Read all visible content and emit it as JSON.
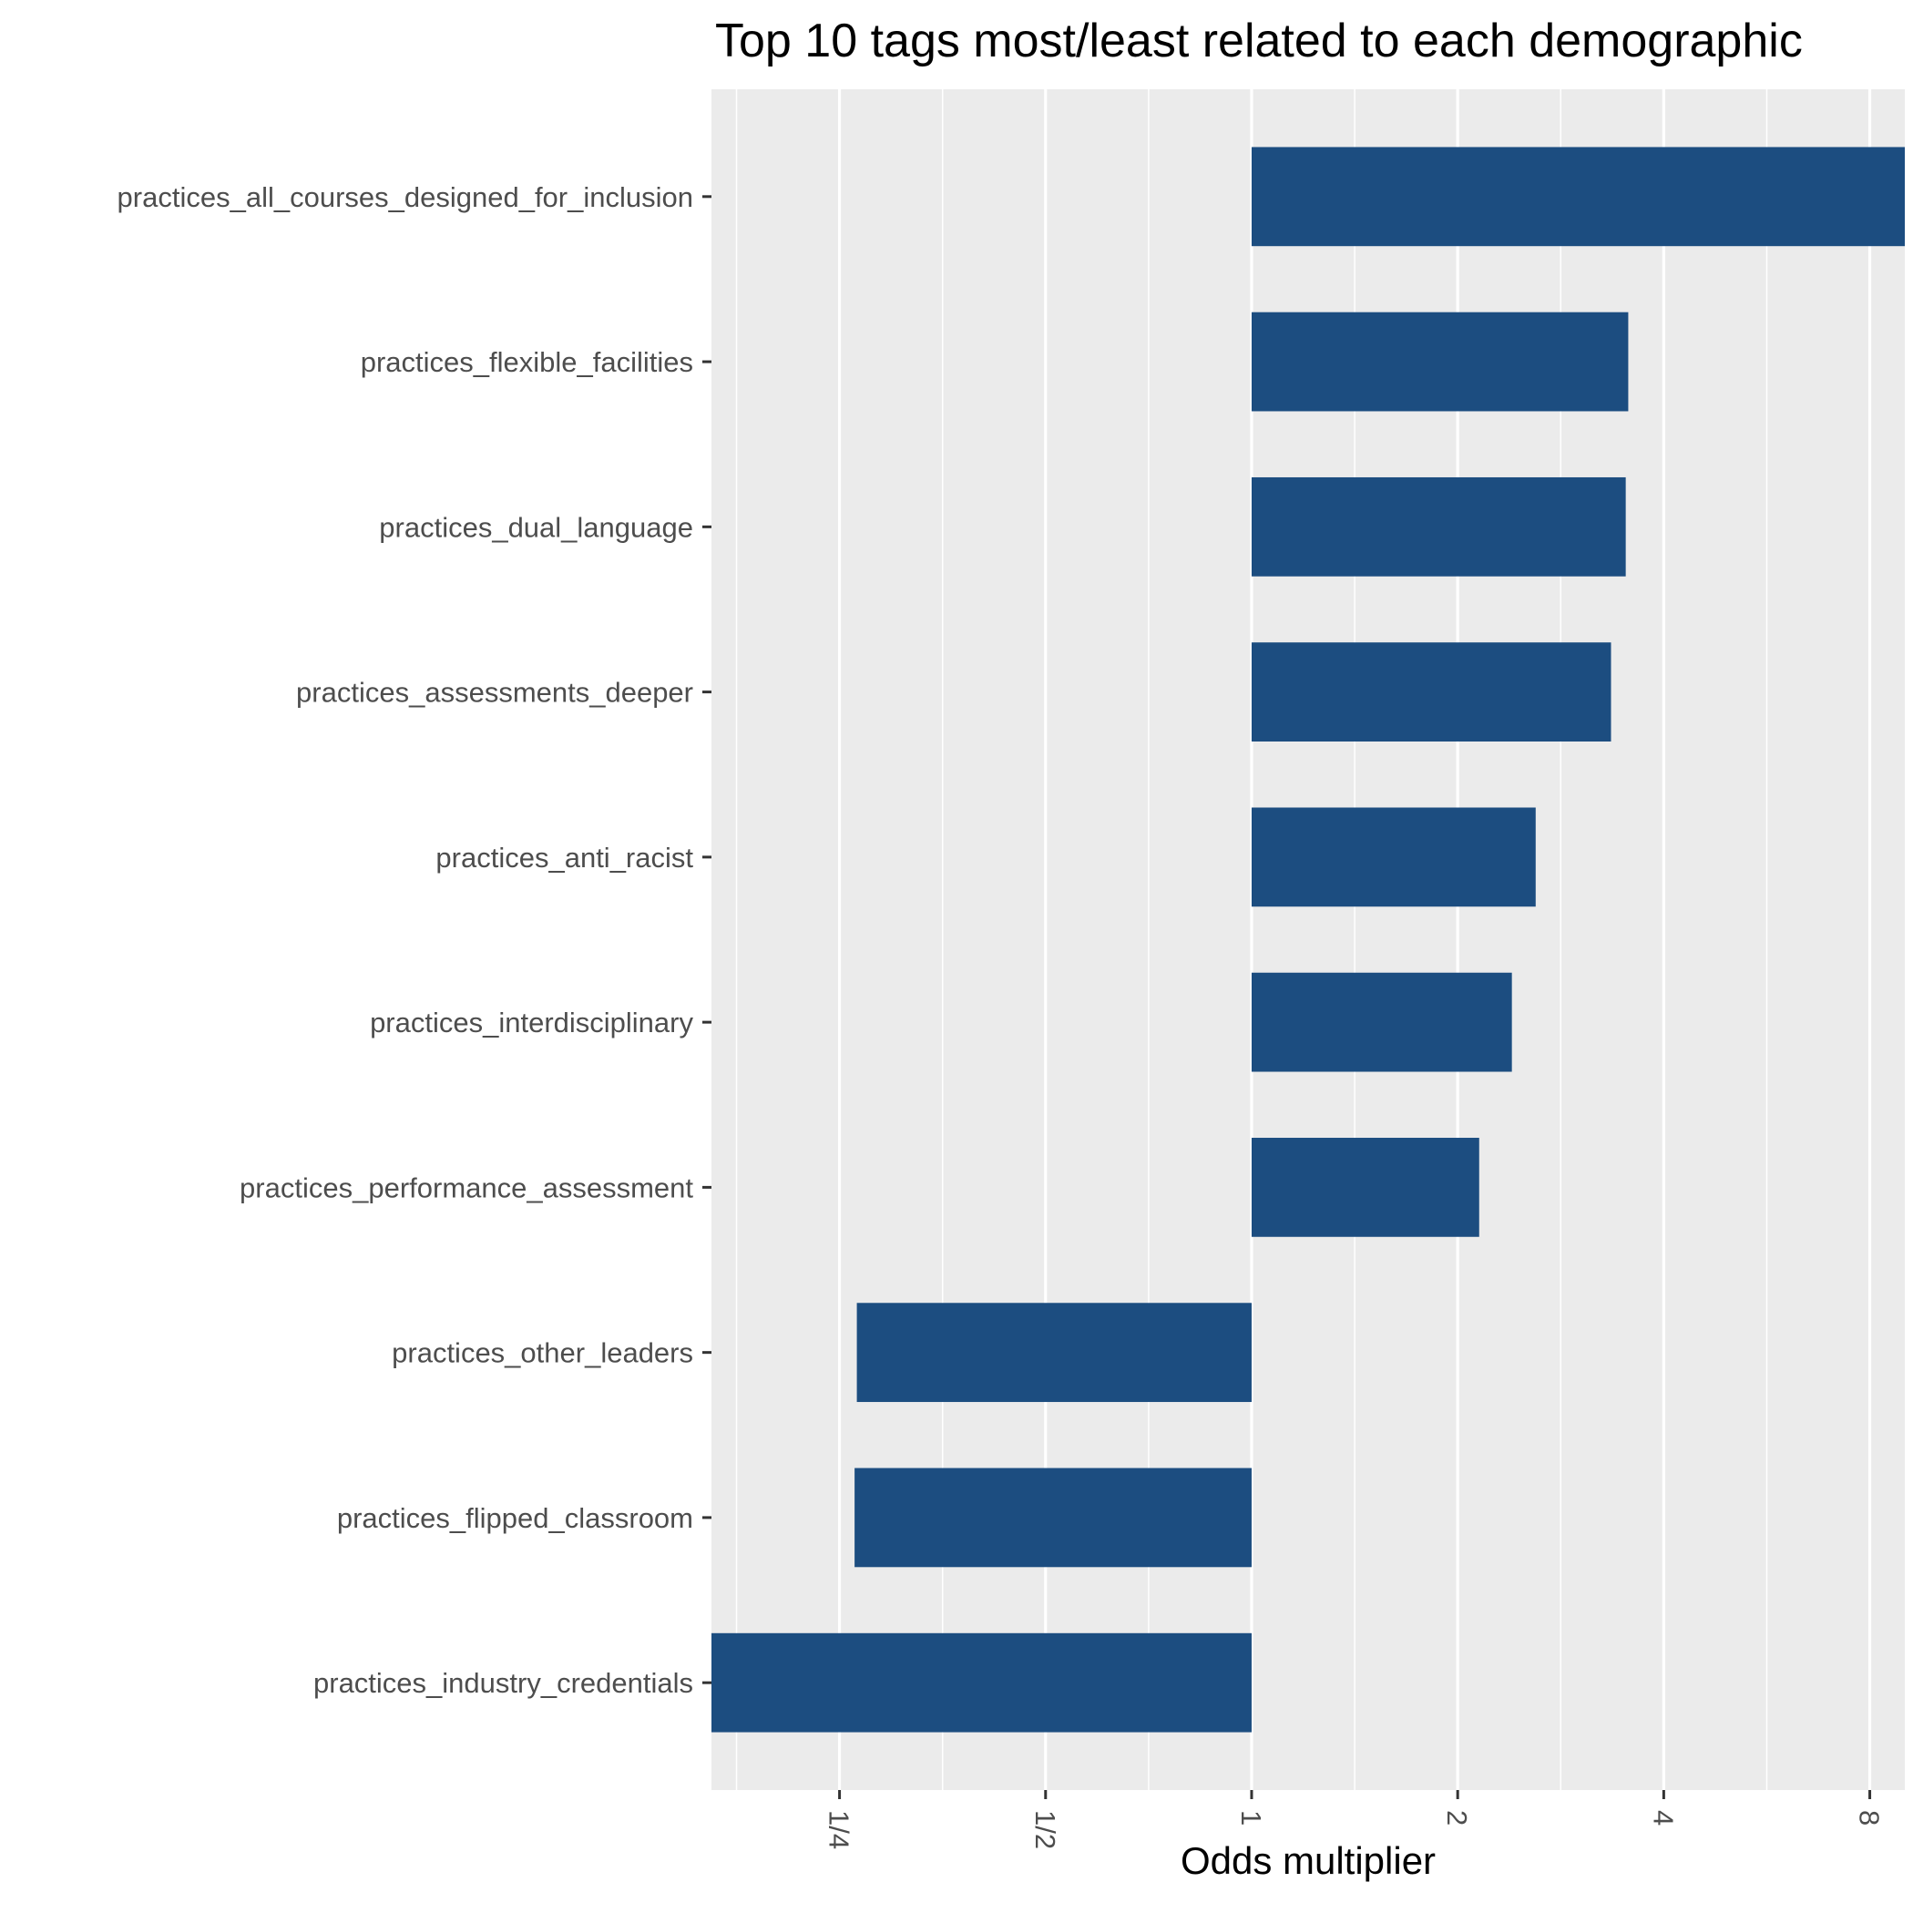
{
  "chart_data": {
    "type": "bar",
    "orientation": "horizontal",
    "title": "Top 10 tags most/least related to each demographic",
    "xlabel": "Odds multiplier",
    "ylabel": "",
    "x_scale": "log2",
    "xlim": [
      0.1625,
      9.0
    ],
    "baseline": 1,
    "x_ticks": [
      {
        "value": 0.25,
        "label": "1/4"
      },
      {
        "value": 0.5,
        "label": "1/2"
      },
      {
        "value": 1,
        "label": "1"
      },
      {
        "value": 2,
        "label": "2"
      },
      {
        "value": 4,
        "label": "4"
      },
      {
        "value": 8,
        "label": "8"
      }
    ],
    "grid": true,
    "legend": "none",
    "colors": {
      "bar": "#1c4d80",
      "panel": "#ebebeb",
      "grid": "#ffffff"
    },
    "categories": [
      "practices_all_courses_designed_for_inclusion",
      "practices_flexible_facilities",
      "practices_dual_language",
      "practices_assessments_deeper",
      "practices_anti_racist",
      "practices_interdisciplinary",
      "practices_performance_assessment",
      "practices_other_leaders",
      "practices_flipped_classroom",
      "practices_industry_credentials"
    ],
    "values": [
      9.0,
      3.55,
      3.52,
      3.35,
      2.6,
      2.4,
      2.15,
      0.265,
      0.263,
      0.1625
    ]
  }
}
